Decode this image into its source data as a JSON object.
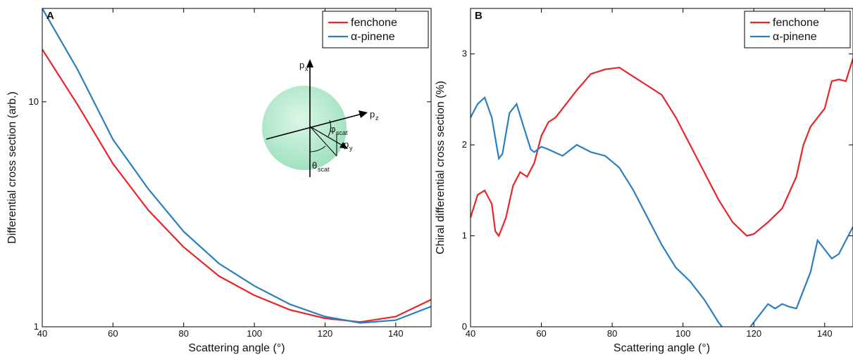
{
  "chart_data": [
    {
      "type": "line",
      "panel_label": "A",
      "xlabel": "Scattering angle (°)",
      "ylabel": "Differential cross section (arb.)",
      "xlim": [
        40,
        150
      ],
      "xticks": [
        40,
        60,
        80,
        100,
        120,
        140
      ],
      "ylim": [
        1,
        26
      ],
      "yticks": [
        1,
        10
      ],
      "log_y": true,
      "legend": "upper right",
      "inset_labels": [
        {
          "base": "p",
          "sub": "x"
        },
        {
          "base": "p",
          "sub": "z"
        },
        {
          "base": "p",
          "sub": "y"
        },
        {
          "base": "φ",
          "sub": "scat"
        },
        {
          "base": "θ",
          "sub": "scat"
        }
      ],
      "series": [
        {
          "name": "fenchone",
          "color": "#e8262a",
          "x": [
            40,
            50,
            60,
            70,
            80,
            90,
            100,
            110,
            120,
            130,
            140,
            150
          ],
          "values": [
            17.1,
            9.7,
            5.3,
            3.3,
            2.26,
            1.68,
            1.38,
            1.19,
            1.09,
            1.05,
            1.11,
            1.32
          ]
        },
        {
          "name": "α-pinene",
          "color": "#2a7fc1",
          "x": [
            40,
            50,
            60,
            70,
            80,
            90,
            100,
            110,
            120,
            130,
            140,
            150
          ],
          "values": [
            26,
            13.9,
            6.8,
            4.1,
            2.65,
            1.91,
            1.52,
            1.26,
            1.11,
            1.04,
            1.07,
            1.23
          ]
        }
      ]
    },
    {
      "type": "line",
      "panel_label": "B",
      "xlabel": "Scattering angle (°)",
      "ylabel": "Chiral differential cross section (%)",
      "xlim": [
        40,
        148
      ],
      "xticks": [
        40,
        60,
        80,
        100,
        120,
        140
      ],
      "ylim": [
        0,
        3.5
      ],
      "yticks": [
        0,
        1,
        2,
        3
      ],
      "log_y": false,
      "legend": "upper right",
      "series": [
        {
          "name": "fenchone",
          "color": "#e8262a",
          "x": [
            40,
            42,
            44,
            46,
            47,
            48,
            50,
            52,
            54,
            56,
            58,
            60,
            62,
            64,
            66,
            70,
            74,
            78,
            82,
            86,
            90,
            94,
            98,
            102,
            106,
            110,
            114,
            118,
            120,
            124,
            128,
            132,
            134,
            136,
            138,
            140,
            142,
            144,
            146,
            148
          ],
          "values": [
            1.2,
            1.45,
            1.5,
            1.35,
            1.05,
            1.0,
            1.2,
            1.55,
            1.7,
            1.65,
            1.8,
            2.1,
            2.25,
            2.3,
            2.4,
            2.6,
            2.78,
            2.83,
            2.85,
            2.75,
            2.65,
            2.55,
            2.3,
            2.0,
            1.7,
            1.4,
            1.15,
            1.0,
            1.02,
            1.15,
            1.3,
            1.65,
            2.0,
            2.2,
            2.3,
            2.4,
            2.7,
            2.72,
            2.7,
            2.95
          ]
        },
        {
          "name": "α-pinene",
          "color": "#2a7fc1",
          "x": [
            40,
            42,
            44,
            46,
            48,
            49,
            51,
            53,
            55,
            57,
            58,
            60,
            62,
            66,
            70,
            74,
            78,
            82,
            86,
            90,
            94,
            98,
            102,
            106,
            110,
            111,
            114,
            116,
            119,
            122,
            124,
            126,
            128,
            130,
            132,
            134,
            136,
            138,
            140,
            142,
            144,
            146,
            148
          ],
          "values": [
            2.3,
            2.45,
            2.52,
            2.3,
            1.85,
            1.9,
            2.35,
            2.45,
            2.2,
            1.95,
            1.92,
            1.98,
            1.95,
            1.88,
            2.0,
            1.92,
            1.88,
            1.75,
            1.5,
            1.2,
            0.9,
            0.65,
            0.5,
            0.3,
            0.05,
            0,
            null,
            null,
            0,
            0.15,
            0.25,
            0.2,
            0.25,
            0.22,
            0.2,
            0.4,
            0.6,
            0.95,
            0.85,
            0.75,
            0.8,
            0.95,
            1.1
          ]
        }
      ]
    }
  ]
}
